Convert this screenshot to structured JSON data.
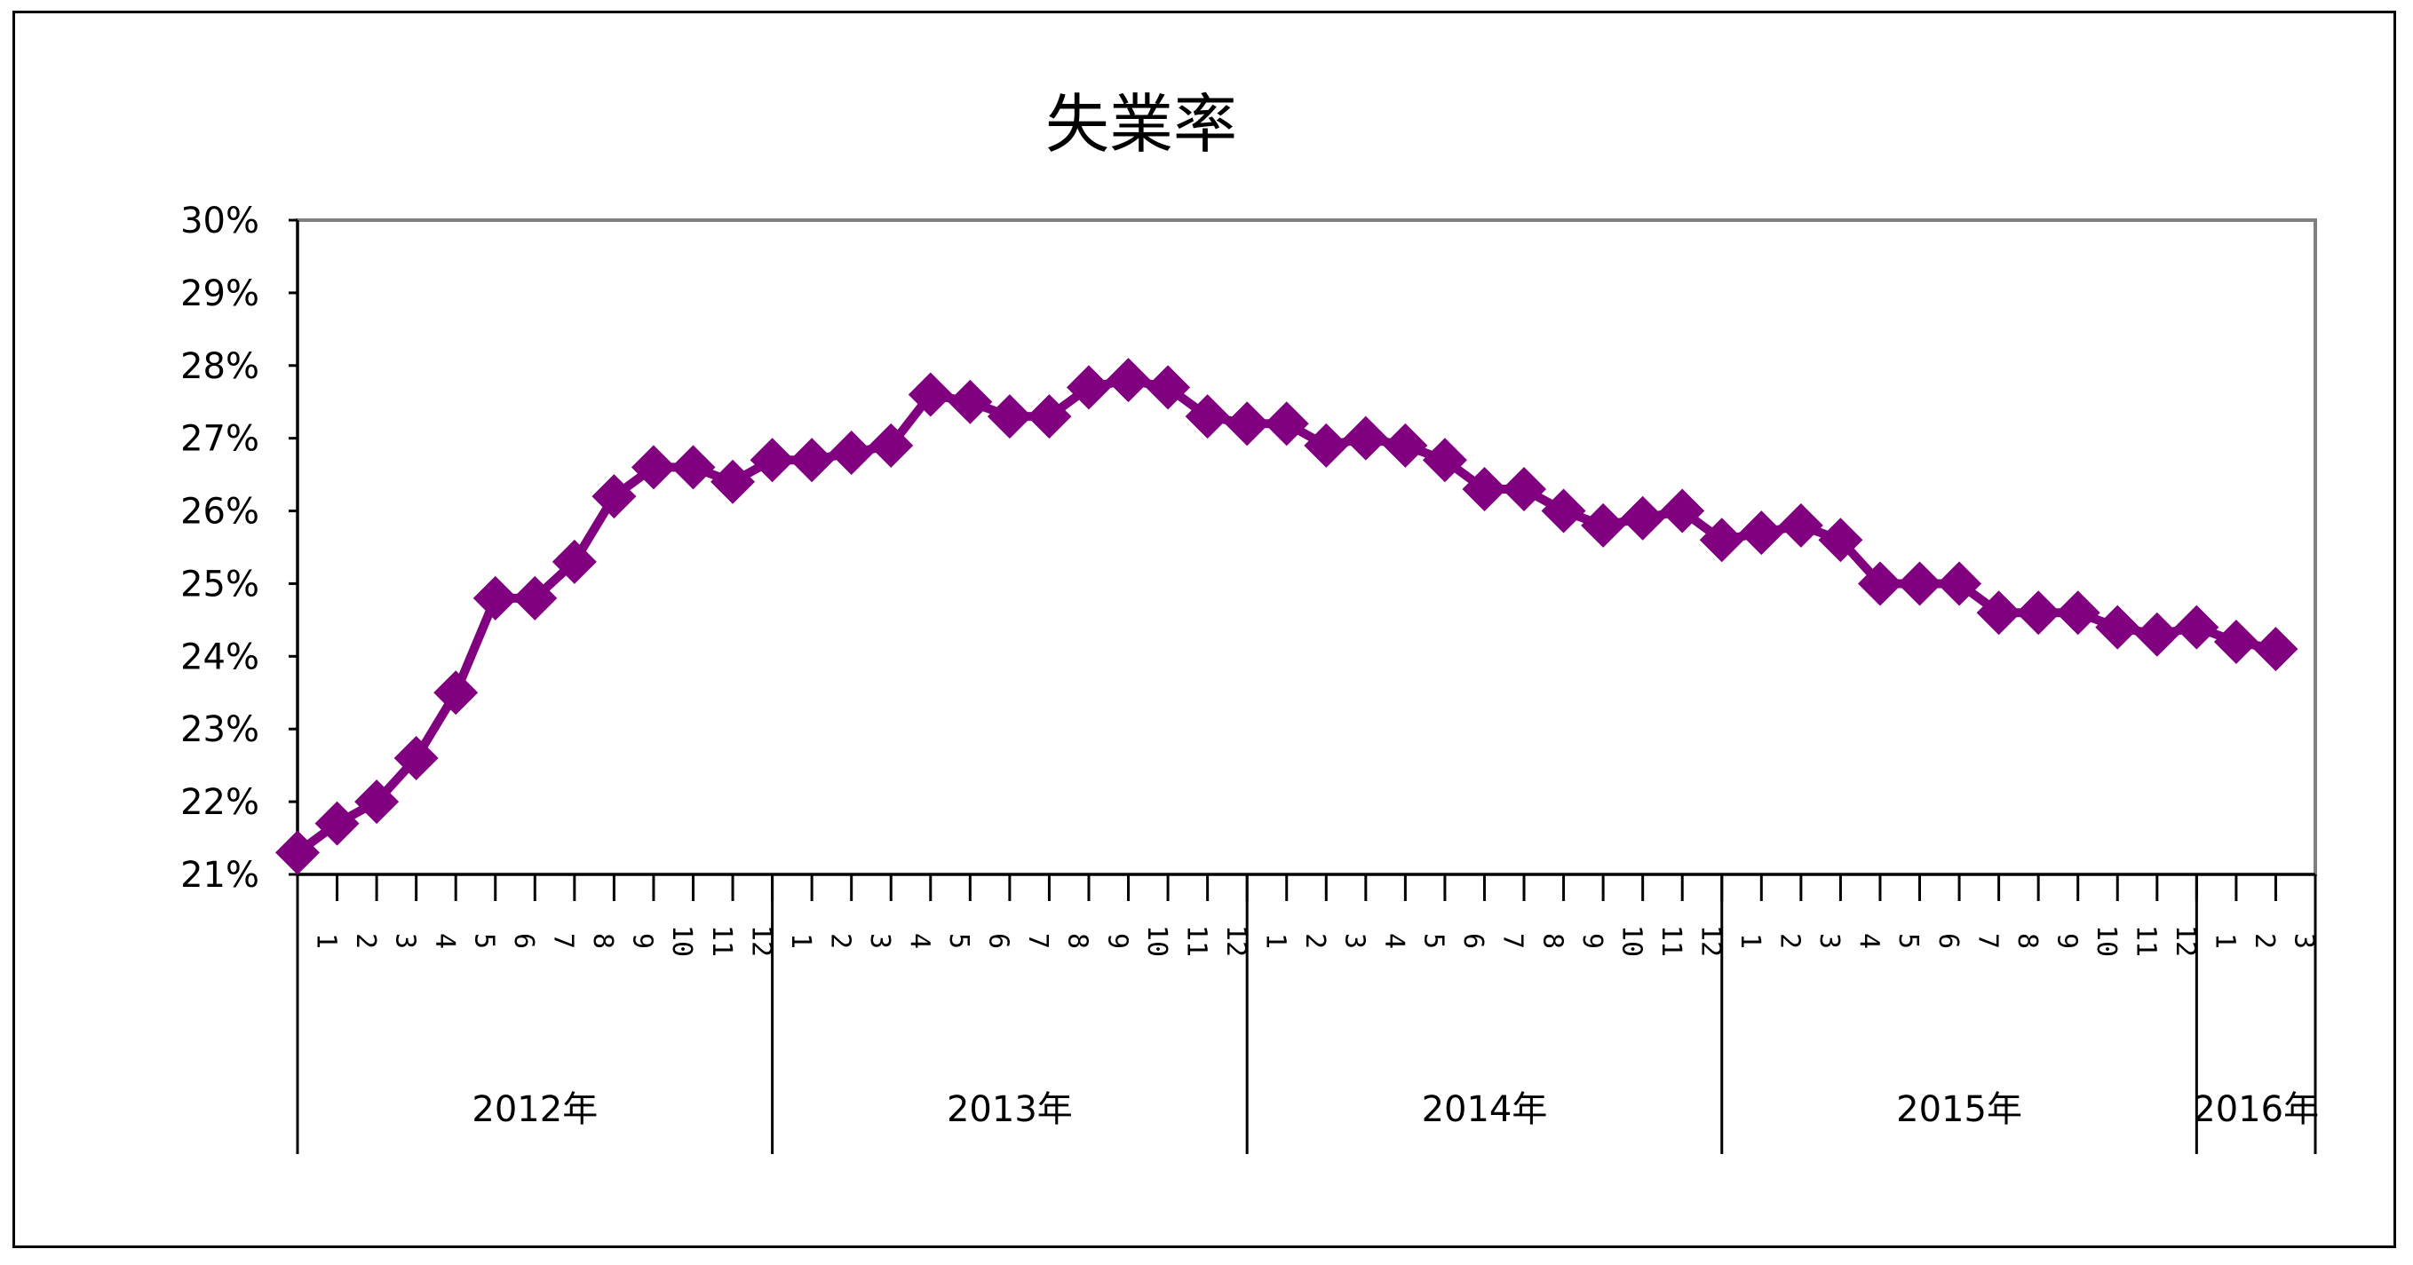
{
  "chart_data": {
    "type": "line",
    "title": "失業率",
    "xlabel": "",
    "ylabel": "",
    "ylim": [
      21,
      30
    ],
    "y_ticks": [
      "21%",
      "22%",
      "23%",
      "24%",
      "25%",
      "26%",
      "27%",
      "28%",
      "29%",
      "30%"
    ],
    "grid": true,
    "legend": "none",
    "series_color": "#800080",
    "marker": "diamond",
    "years": [
      {
        "label": "2012年",
        "months": 12
      },
      {
        "label": "2013年",
        "months": 12
      },
      {
        "label": "2014年",
        "months": 12
      },
      {
        "label": "2015年",
        "months": 12
      },
      {
        "label": "2016年",
        "months": 3
      }
    ],
    "month_labels": [
      "1",
      "2",
      "3",
      "4",
      "5",
      "6",
      "7",
      "8",
      "9",
      "10",
      "11",
      "12",
      "1",
      "2",
      "3",
      "4",
      "5",
      "6",
      "7",
      "8",
      "9",
      "10",
      "11",
      "12",
      "1",
      "2",
      "3",
      "4",
      "5",
      "6",
      "7",
      "8",
      "9",
      "10",
      "11",
      "12",
      "1",
      "2",
      "3",
      "4",
      "5",
      "6",
      "7",
      "8",
      "9",
      "10",
      "11",
      "12",
      "1",
      "2",
      "3"
    ],
    "series": [
      {
        "values": [
          21.3,
          21.7,
          22.0,
          22.6,
          23.5,
          24.8,
          24.8,
          25.3,
          26.2,
          26.6,
          26.6,
          26.4,
          26.7,
          26.7,
          26.8,
          26.9,
          27.6,
          27.5,
          27.3,
          27.3,
          27.7,
          27.8,
          27.7,
          27.3,
          27.2,
          27.2,
          26.9,
          27.0,
          26.9,
          26.7,
          26.3,
          26.3,
          26.0,
          25.8,
          25.9,
          26.0,
          25.6,
          25.7,
          25.8,
          25.6,
          25.0,
          25.0,
          25.0,
          24.6,
          24.6,
          24.6,
          24.4,
          24.3,
          24.4,
          24.2,
          24.1
        ]
      }
    ]
  }
}
